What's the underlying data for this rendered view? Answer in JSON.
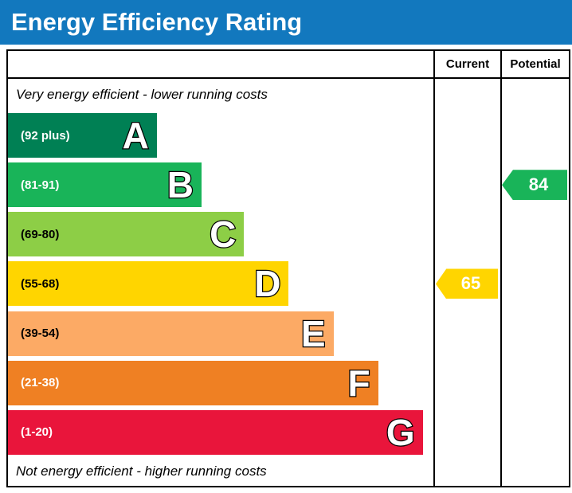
{
  "title": "Energy Efficiency Rating",
  "columns": {
    "current": "Current",
    "potential": "Potential"
  },
  "top_note": "Very energy efficient - lower running costs",
  "bottom_note": "Not energy efficient - higher running costs",
  "colors": {
    "title_bar": "#1278be",
    "border": "#000000",
    "arrow_text": "#ffffff"
  },
  "bands": [
    {
      "letter": "A",
      "range": "(92 plus)",
      "color": "#008054",
      "label_color": "#ffffff",
      "width_pct": 35
    },
    {
      "letter": "B",
      "range": "(81-91)",
      "color": "#19b459",
      "label_color": "#ffffff",
      "width_pct": 45.5
    },
    {
      "letter": "C",
      "range": "(69-80)",
      "color": "#8dce46",
      "label_color": "#000000",
      "width_pct": 55.5
    },
    {
      "letter": "D",
      "range": "(55-68)",
      "color": "#ffd500",
      "label_color": "#000000",
      "width_pct": 66
    },
    {
      "letter": "E",
      "range": "(39-54)",
      "color": "#fcaa65",
      "label_color": "#000000",
      "width_pct": 76.5
    },
    {
      "letter": "F",
      "range": "(21-38)",
      "color": "#ef8023",
      "label_color": "#ffffff",
      "width_pct": 87
    },
    {
      "letter": "G",
      "range": "(1-20)",
      "color": "#e9153b",
      "label_color": "#ffffff",
      "width_pct": 97.5
    }
  ],
  "current": {
    "value": "65",
    "band": "D",
    "color": "#ffd500"
  },
  "potential": {
    "value": "84",
    "band": "B",
    "color": "#19b459"
  },
  "chart_data": {
    "type": "bar",
    "title": "Energy Efficiency Rating",
    "categories": [
      "A",
      "B",
      "C",
      "D",
      "E",
      "F",
      "G"
    ],
    "ranges": [
      "92 plus",
      "81-91",
      "69-80",
      "55-68",
      "39-54",
      "21-38",
      "1-20"
    ],
    "series": [
      {
        "name": "Current",
        "value": 65,
        "band": "D"
      },
      {
        "name": "Potential",
        "value": 84,
        "band": "B"
      }
    ],
    "ylim": [
      1,
      100
    ],
    "legend_position": "none",
    "grid": false
  }
}
